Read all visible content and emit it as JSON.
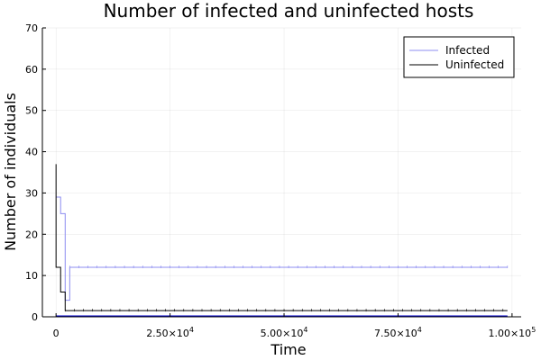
{
  "chart_data": {
    "type": "line",
    "title": "Number of infected and uninfected hosts",
    "xlabel": "Time",
    "ylabel": "Number of individuals",
    "xlim": [
      -3000,
      102000
    ],
    "ylim": [
      0,
      70
    ],
    "grid": true,
    "legend_position": "top-right",
    "x_ticks": [
      {
        "value": 0,
        "label": "0"
      },
      {
        "value": 25000,
        "label": "2.50×10",
        "exp": "4"
      },
      {
        "value": 50000,
        "label": "5.00×10",
        "exp": "4"
      },
      {
        "value": 75000,
        "label": "7.50×10",
        "exp": "4"
      },
      {
        "value": 100000,
        "label": "1.00×10",
        "exp": "5"
      }
    ],
    "y_ticks": [
      0,
      10,
      20,
      30,
      40,
      50,
      60,
      70
    ],
    "series": [
      {
        "name": "Infected",
        "color": "#8c8cf0",
        "step": true,
        "points": [
          [
            0,
            29
          ],
          [
            1000,
            25
          ],
          [
            2000,
            4
          ],
          [
            3000,
            12
          ],
          [
            99000,
            12
          ]
        ]
      },
      {
        "name": "Uninfected",
        "color": "#000000",
        "step": true,
        "points": [
          [
            0,
            37
          ],
          [
            0,
            12
          ],
          [
            1000,
            6
          ],
          [
            2000,
            1.5
          ],
          [
            99000,
            1.5
          ]
        ]
      }
    ],
    "baseline": {
      "color": "#0000cc",
      "value": 0,
      "x_range": [
        0,
        99000
      ]
    }
  }
}
